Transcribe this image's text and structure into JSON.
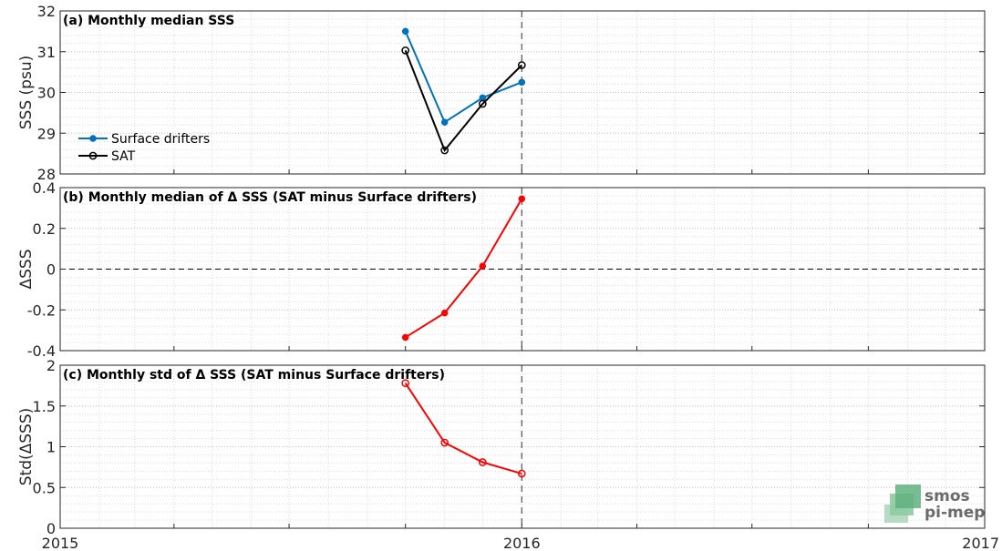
{
  "chart_data": [
    {
      "type": "line",
      "title": "(a) Monthly median SSS",
      "ylabel": "SSS (psu)",
      "ylim": [
        28,
        32
      ],
      "yticks": [
        28,
        29,
        30,
        31,
        32
      ],
      "x_dates": [
        "2015-10-01",
        "2015-11-01",
        "2015-12-01",
        "2016-01-01"
      ],
      "series": [
        {
          "name": "Surface drifters",
          "color": "#0072BD",
          "marker": "filled-circle",
          "values": [
            31.5,
            29.27,
            29.87,
            30.25
          ]
        },
        {
          "name": "SAT",
          "color": "#000000",
          "marker": "open-circle",
          "values": [
            31.03,
            28.58,
            29.72,
            30.67
          ]
        }
      ],
      "legend_position": "left"
    },
    {
      "type": "line",
      "title": "(b) Monthly median of Δ SSS (SAT minus Surface drifters)",
      "ylabel": "ΔSSS",
      "ylim": [
        -0.4,
        0.4
      ],
      "yticks": [
        -0.4,
        -0.2,
        0,
        0.2,
        0.4
      ],
      "ytick_labels": [
        "-0.4",
        "-0.2",
        "0",
        "0.2",
        "0.4"
      ],
      "x_dates": [
        "2015-10-01",
        "2015-11-01",
        "2015-12-01",
        "2016-01-01"
      ],
      "series": [
        {
          "color": "#ff0000",
          "marker": "circle",
          "values": [
            -0.335,
            -0.215,
            0.015,
            0.345
          ]
        }
      ]
    },
    {
      "type": "line",
      "title": "(c) Monthly std of Δ SSS (SAT minus Surface drifters)",
      "ylabel": "Std(ΔSSS)",
      "ylim": [
        0,
        2
      ],
      "yticks": [
        0,
        0.5,
        1,
        1.5,
        2
      ],
      "ytick_labels": [
        "0",
        "0.5",
        "1",
        "1.5",
        "2"
      ],
      "x_dates": [
        "2015-10-01",
        "2015-11-01",
        "2015-12-01",
        "2016-01-01"
      ],
      "series": [
        {
          "color": "#ff0000",
          "marker": "open-circle",
          "values": [
            1.78,
            1.05,
            0.81,
            0.67
          ]
        }
      ]
    }
  ],
  "x_axis": {
    "range": [
      "2015-01-01",
      "2017-01-01"
    ],
    "tick_labels": [
      "2015",
      "2016",
      "2017"
    ],
    "vertical_marker": "2016-01-01"
  },
  "logo": {
    "line1": "smos",
    "line2": "pi-mep"
  },
  "grid": true
}
